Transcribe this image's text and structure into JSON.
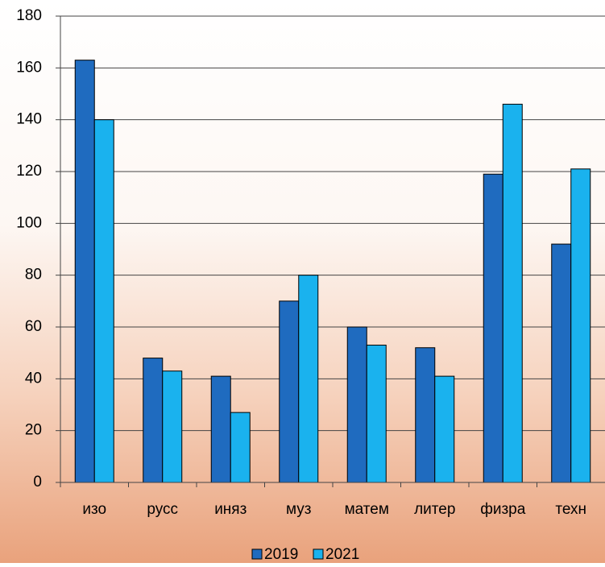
{
  "chart_data": {
    "type": "bar",
    "categories": [
      "изо",
      "русс",
      "иняз",
      "муз",
      "матем",
      "литер",
      "физра",
      "техн"
    ],
    "series": [
      {
        "name": "2019",
        "color": "#1f6bbf",
        "values": [
          163,
          48,
          41,
          70,
          60,
          52,
          119,
          92
        ]
      },
      {
        "name": "2021",
        "color": "#1ab2ee",
        "values": [
          140,
          43,
          27,
          80,
          53,
          41,
          146,
          121
        ]
      }
    ],
    "ylim": [
      0,
      180
    ],
    "yticks": [
      0,
      20,
      40,
      60,
      80,
      100,
      120,
      140,
      160,
      180
    ],
    "grid": true,
    "legend": "bottom"
  }
}
